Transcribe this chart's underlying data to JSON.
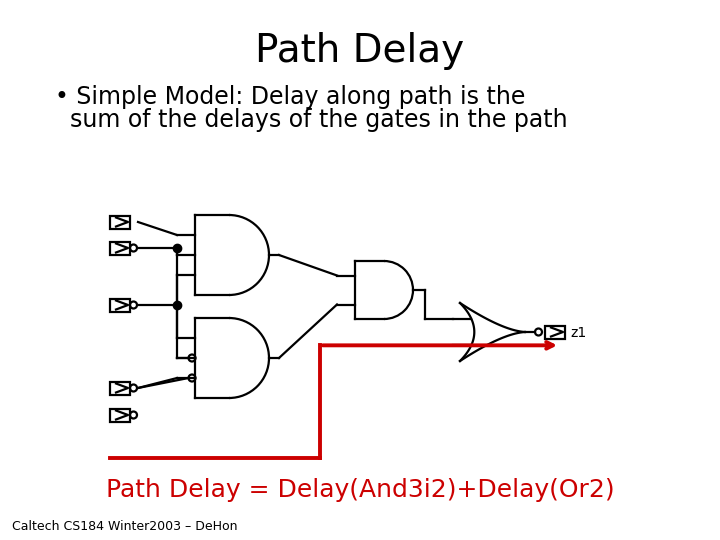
{
  "title": "Path Delay",
  "bullet_line1": "• Simple Model: Delay along path is the",
  "bullet_line2": "  sum of the delays of the gates in the path",
  "footer": "Caltech CS184 Winter2003 – DeHon",
  "path_delay_label": "Path Delay = Delay(And3i2)+Delay(Or2)",
  "bg_color": "#ffffff",
  "title_fontsize": 28,
  "bullet_fontsize": 17,
  "footer_fontsize": 9,
  "label_fontsize": 18,
  "gate_color": "#000000",
  "highlight_color": "#cc0000",
  "gate_lw": 1.6,
  "wire_lw": 1.6,
  "red_lw": 2.8
}
